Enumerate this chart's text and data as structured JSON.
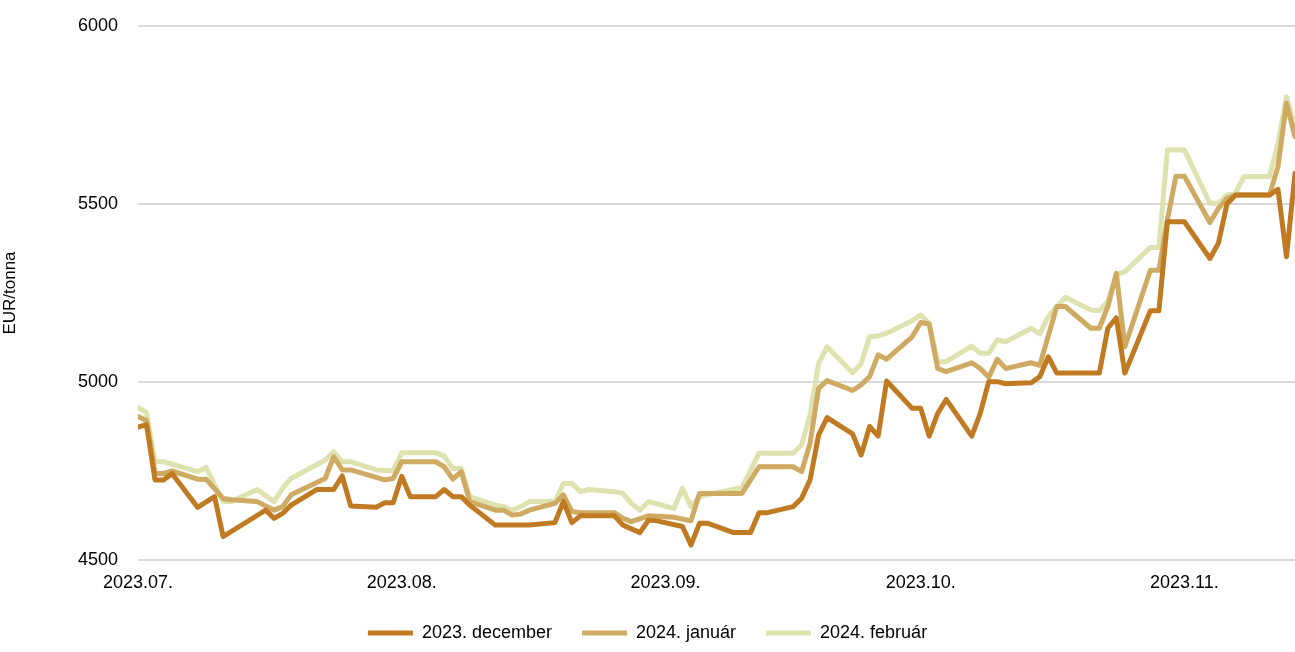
{
  "chart_data": {
    "type": "line",
    "ylabel": "EUR/tonna",
    "xlim": [
      "2023-07-01",
      "2023-11-14"
    ],
    "xticks": [
      {
        "value": "2023-07-01",
        "label": "2023.07."
      },
      {
        "value": "2023-08-01",
        "label": "2023.08."
      },
      {
        "value": "2023-09-01",
        "label": "2023.09."
      },
      {
        "value": "2023-10-01",
        "label": "2023.10."
      },
      {
        "value": "2023-11-01",
        "label": "2023.11."
      }
    ],
    "ylim": [
      4500,
      6000
    ],
    "yticks": [
      4500,
      5000,
      5500,
      6000
    ],
    "grid": "y",
    "legend": "bottom",
    "series": [
      {
        "name": "2023. december",
        "color": "#bf7a22",
        "x": [
          "2023-07-01",
          "2023-07-02",
          "2023-07-03",
          "2023-07-04",
          "2023-07-05",
          "2023-07-08",
          "2023-07-10",
          "2023-07-11",
          "2023-07-16",
          "2023-07-17",
          "2023-07-18",
          "2023-07-19",
          "2023-07-22",
          "2023-07-24",
          "2023-07-25",
          "2023-07-26",
          "2023-07-29",
          "2023-07-30",
          "2023-07-31",
          "2023-08-01",
          "2023-08-02",
          "2023-08-05",
          "2023-08-06",
          "2023-08-07",
          "2023-08-08",
          "2023-08-09",
          "2023-08-12",
          "2023-08-16",
          "2023-08-19",
          "2023-08-20",
          "2023-08-21",
          "2023-08-22",
          "2023-08-26",
          "2023-08-27",
          "2023-08-29",
          "2023-08-30",
          "2023-08-31",
          "2023-09-03",
          "2023-09-04",
          "2023-09-05",
          "2023-09-06",
          "2023-09-09",
          "2023-09-11",
          "2023-09-12",
          "2023-09-13",
          "2023-09-16",
          "2023-09-17",
          "2023-09-18",
          "2023-09-19",
          "2023-09-20",
          "2023-09-23",
          "2023-09-24",
          "2023-09-25",
          "2023-09-26",
          "2023-09-27",
          "2023-09-30",
          "2023-10-01",
          "2023-10-02",
          "2023-10-03",
          "2023-10-04",
          "2023-10-07",
          "2023-10-08",
          "2023-10-09",
          "2023-10-10",
          "2023-10-11",
          "2023-10-14",
          "2023-10-15",
          "2023-10-16",
          "2023-10-17",
          "2023-10-22",
          "2023-10-23",
          "2023-10-24",
          "2023-10-25",
          "2023-10-28",
          "2023-10-29",
          "2023-10-30",
          "2023-11-01",
          "2023-11-04",
          "2023-11-05",
          "2023-11-06",
          "2023-11-07",
          "2023-11-11",
          "2023-11-12",
          "2023-11-13",
          "2023-11-14"
        ],
        "values": [
          4873,
          4880,
          4725,
          4725,
          4743,
          4648,
          4678,
          4566,
          4640,
          4617,
          4631,
          4654,
          4698,
          4698,
          4736,
          4652,
          4648,
          4661,
          4661,
          4735,
          4678,
          4678,
          4698,
          4678,
          4678,
          4654,
          4598,
          4598,
          4605,
          4664,
          4605,
          4624,
          4624,
          4598,
          4577,
          4612,
          4610,
          4594,
          4542,
          4603,
          4603,
          4577,
          4577,
          4633,
          4633,
          4650,
          4673,
          4725,
          4851,
          4900,
          4854,
          4795,
          4875,
          4848,
          5003,
          4926,
          4926,
          4848,
          4912,
          4951,
          4848,
          4912,
          5001,
          5001,
          4995,
          4998,
          5015,
          5071,
          5025,
          5025,
          5151,
          5180,
          5025,
          5200,
          5200,
          5450,
          5450,
          5347,
          5390,
          5500,
          5525,
          5525,
          5541,
          5352,
          5586
        ]
      },
      {
        "name": "2024. január",
        "color": "#cfaa63",
        "x": [
          "2023-07-01",
          "2023-07-02",
          "2023-07-03",
          "2023-07-04",
          "2023-07-05",
          "2023-07-08",
          "2023-07-09",
          "2023-07-11",
          "2023-07-12",
          "2023-07-15",
          "2023-07-17",
          "2023-07-18",
          "2023-07-19",
          "2023-07-23",
          "2023-07-24",
          "2023-07-25",
          "2023-07-26",
          "2023-07-30",
          "2023-07-31",
          "2023-08-01",
          "2023-08-05",
          "2023-08-06",
          "2023-08-07",
          "2023-08-08",
          "2023-08-09",
          "2023-08-12",
          "2023-08-13",
          "2023-08-14",
          "2023-08-15",
          "2023-08-16",
          "2023-08-19",
          "2023-08-20",
          "2023-08-21",
          "2023-08-22",
          "2023-08-26",
          "2023-08-27",
          "2023-08-28",
          "2023-08-30",
          "2023-09-02",
          "2023-09-04",
          "2023-09-05",
          "2023-09-10",
          "2023-09-12",
          "2023-09-16",
          "2023-09-17",
          "2023-09-18",
          "2023-09-19",
          "2023-09-20",
          "2023-09-23",
          "2023-09-24",
          "2023-09-25",
          "2023-09-26",
          "2023-09-27",
          "2023-09-30",
          "2023-10-01",
          "2023-10-02",
          "2023-10-03",
          "2023-10-04",
          "2023-10-07",
          "2023-10-08",
          "2023-10-09",
          "2023-10-10",
          "2023-10-11",
          "2023-10-14",
          "2023-10-15",
          "2023-10-17",
          "2023-10-18",
          "2023-10-21",
          "2023-10-22",
          "2023-10-23",
          "2023-10-24",
          "2023-10-25",
          "2023-10-28",
          "2023-10-29",
          "2023-10-30",
          "2023-10-31",
          "2023-11-01",
          "2023-11-04",
          "2023-11-05",
          "2023-11-06",
          "2023-11-07",
          "2023-11-11",
          "2023-11-12",
          "2023-11-13",
          "2023-11-14"
        ],
        "values": [
          4903,
          4891,
          4743,
          4743,
          4750,
          4727,
          4727,
          4673,
          4669,
          4664,
          4640,
          4650,
          4683,
          4729,
          4790,
          4753,
          4753,
          4725,
          4729,
          4776,
          4776,
          4762,
          4727,
          4748,
          4664,
          4640,
          4640,
          4626,
          4629,
          4640,
          4659,
          4683,
          4636,
          4633,
          4633,
          4617,
          4608,
          4624,
          4620,
          4610,
          4687,
          4687,
          4762,
          4762,
          4748,
          4828,
          4982,
          5004,
          4976,
          4992,
          5015,
          5076,
          5064,
          5127,
          5167,
          5163,
          5038,
          5029,
          5054,
          5038,
          5013,
          5064,
          5038,
          5054,
          5047,
          5212,
          5212,
          5151,
          5151,
          5212,
          5305,
          5099,
          5314,
          5314,
          5455,
          5578,
          5578,
          5448,
          5488,
          5516,
          5525,
          5525,
          5605,
          5783,
          5689
        ]
      },
      {
        "name": "2024. február",
        "color": "#dde2af",
        "x": [
          "2023-07-01",
          "2023-07-02",
          "2023-07-03",
          "2023-07-04",
          "2023-07-08",
          "2023-07-09",
          "2023-07-11",
          "2023-07-12",
          "2023-07-15",
          "2023-07-17",
          "2023-07-18",
          "2023-07-19",
          "2023-07-23",
          "2023-07-24",
          "2023-07-25",
          "2023-07-26",
          "2023-07-29",
          "2023-07-31",
          "2023-08-01",
          "2023-08-05",
          "2023-08-06",
          "2023-08-07",
          "2023-08-08",
          "2023-08-09",
          "2023-08-12",
          "2023-08-13",
          "2023-08-14",
          "2023-08-15",
          "2023-08-16",
          "2023-08-19",
          "2023-08-20",
          "2023-08-21",
          "2023-08-22",
          "2023-08-23",
          "2023-08-26",
          "2023-08-27",
          "2023-08-28",
          "2023-08-29",
          "2023-08-30",
          "2023-09-02",
          "2023-09-03",
          "2023-09-04",
          "2023-09-05",
          "2023-09-10",
          "2023-09-12",
          "2023-09-16",
          "2023-09-17",
          "2023-09-18",
          "2023-09-19",
          "2023-09-20",
          "2023-09-23",
          "2023-09-24",
          "2023-09-25",
          "2023-09-26",
          "2023-09-27",
          "2023-09-30",
          "2023-10-01",
          "2023-10-02",
          "2023-10-03",
          "2023-10-04",
          "2023-10-07",
          "2023-10-08",
          "2023-10-09",
          "2023-10-10",
          "2023-10-11",
          "2023-10-14",
          "2023-10-15",
          "2023-10-16",
          "2023-10-18",
          "2023-10-21",
          "2023-10-22",
          "2023-10-23",
          "2023-10-24",
          "2023-10-25",
          "2023-10-28",
          "2023-10-29",
          "2023-10-30",
          "2023-11-01",
          "2023-11-04",
          "2023-11-05",
          "2023-11-06",
          "2023-11-07",
          "2023-11-08",
          "2023-11-11",
          "2023-11-12",
          "2023-11-13",
          "2023-11-14"
        ],
        "values": [
          4929,
          4914,
          4776,
          4776,
          4748,
          4760,
          4664,
          4664,
          4698,
          4664,
          4701,
          4729,
          4781,
          4804,
          4776,
          4776,
          4753,
          4751,
          4801,
          4801,
          4792,
          4757,
          4757,
          4678,
          4654,
          4650,
          4639,
          4650,
          4664,
          4664,
          4715,
          4715,
          4692,
          4698,
          4692,
          4687,
          4659,
          4640,
          4664,
          4645,
          4701,
          4650,
          4678,
          4704,
          4800,
          4800,
          4823,
          4907,
          5052,
          5099,
          5026,
          5051,
          5127,
          5129,
          5137,
          5172,
          5188,
          5165,
          5057,
          5057,
          5101,
          5081,
          5081,
          5118,
          5113,
          5151,
          5135,
          5184,
          5238,
          5202,
          5200,
          5226,
          5301,
          5310,
          5378,
          5378,
          5652,
          5652,
          5502,
          5502,
          5525,
          5530,
          5577,
          5577,
          5670,
          5801,
          5717
        ]
      }
    ]
  }
}
